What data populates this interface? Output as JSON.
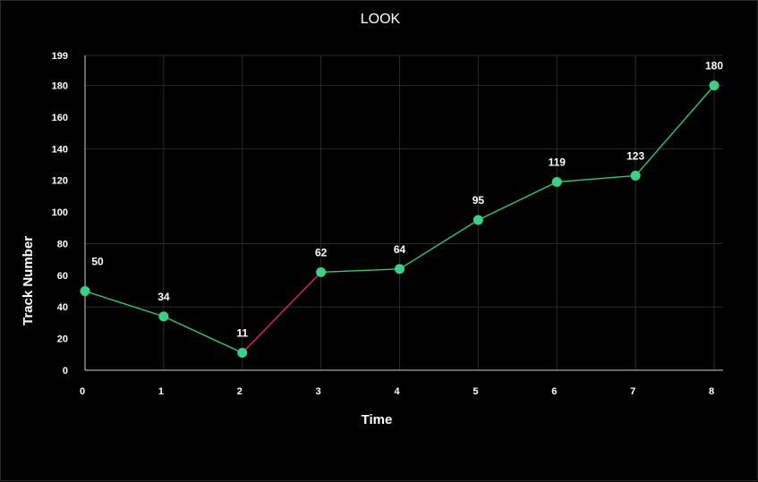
{
  "chart_data": {
    "type": "line",
    "title": "LOOK",
    "xlabel": "Time",
    "ylabel": "Track Number",
    "x": [
      0,
      1,
      2,
      3,
      4,
      5,
      6,
      7,
      8
    ],
    "values": [
      50,
      34,
      11,
      62,
      64,
      95,
      119,
      123,
      180
    ],
    "xlim": [
      0,
      8
    ],
    "ylim": [
      0,
      199
    ],
    "y_ticks": [
      0,
      20,
      40,
      60,
      80,
      100,
      120,
      140,
      160,
      180,
      199
    ],
    "y_grid": [
      0,
      40,
      80,
      140,
      180,
      199
    ],
    "grid": true,
    "colors": {
      "line": "#2ecc71",
      "highlight_segment": "#e0245e",
      "point": "#3ad184",
      "background": "#000000"
    },
    "highlight_segment_index": 2
  }
}
